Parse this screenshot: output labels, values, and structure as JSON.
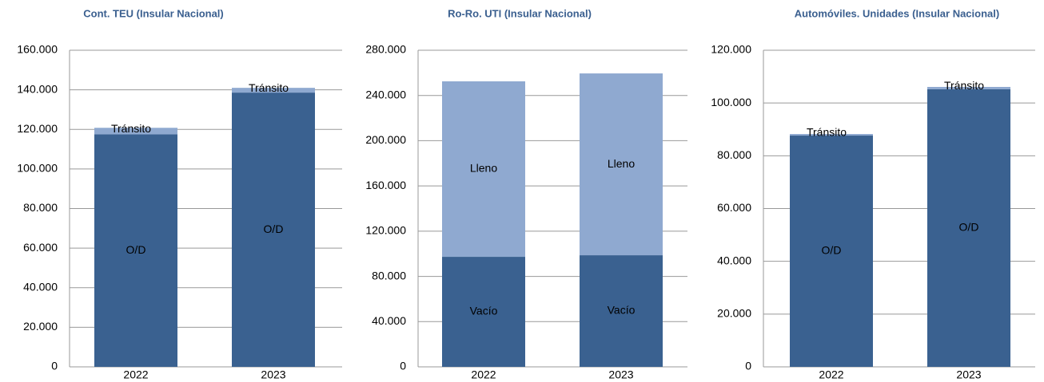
{
  "chart_data": [
    {
      "type": "stacked-bar",
      "title": "Cont. TEU (Insular Nacional)",
      "categories": [
        "2022",
        "2023"
      ],
      "series": [
        {
          "name": "O/D",
          "color": "#3a6190",
          "values": [
            117500,
            138600
          ]
        },
        {
          "name": "Tránsito",
          "color": "#8fa9d0",
          "values": [
            3300,
            2400
          ]
        }
      ],
      "ylim": [
        0,
        160000
      ],
      "yticks": [
        0,
        {
          "value": 20000,
          "label": "20.000"
        },
        {
          "value": 40000,
          "label": "40.000"
        },
        {
          "value": 60000,
          "label": "60.000"
        },
        {
          "value": 80000,
          "label": "80.000"
        },
        {
          "value": 100000,
          "label": "100.000"
        },
        {
          "value": 120000,
          "label": "120.000"
        },
        {
          "value": 140000,
          "label": "140.000"
        },
        {
          "value": 160000,
          "label": "160.000"
        }
      ],
      "grid": true
    },
    {
      "type": "stacked-bar",
      "title": "Ro-Ro. UTI (Insular Nacional)",
      "categories": [
        "2022",
        "2023"
      ],
      "series": [
        {
          "name": "Vacío",
          "color": "#3a6190",
          "values": [
            97300,
            98700
          ]
        },
        {
          "name": "Lleno",
          "color": "#8fa9d0",
          "values": [
            155200,
            160800
          ]
        }
      ],
      "ylim": [
        0,
        280000
      ],
      "yticks": [
        0,
        {
          "value": 40000,
          "label": "40.000"
        },
        {
          "value": 80000,
          "label": "80.000"
        },
        {
          "value": 120000,
          "label": "120.000"
        },
        {
          "value": 160000,
          "label": "160.000"
        },
        {
          "value": 200000,
          "label": "200.000"
        },
        {
          "value": 240000,
          "label": "240.000"
        },
        {
          "value": 280000,
          "label": "280.000"
        }
      ],
      "grid": true
    },
    {
      "type": "stacked-bar",
      "title": "Automóviles. Unidades (Insular Nacional)",
      "categories": [
        "2022",
        "2023"
      ],
      "series": [
        {
          "name": "O/D",
          "color": "#3a6190",
          "values": [
            87650,
            105200
          ]
        },
        {
          "name": "Tránsito",
          "color": "#8fa9d0",
          "values": [
            600,
            900
          ]
        }
      ],
      "ylim": [
        0,
        120000
      ],
      "yticks": [
        0,
        {
          "value": 20000,
          "label": "20.000"
        },
        {
          "value": 40000,
          "label": "40.000"
        },
        {
          "value": 60000,
          "label": "60.000"
        },
        {
          "value": 80000,
          "label": "80.000"
        },
        {
          "value": 100000,
          "label": "100.000"
        },
        {
          "value": 120000,
          "label": "120.000"
        }
      ],
      "grid": true
    }
  ]
}
